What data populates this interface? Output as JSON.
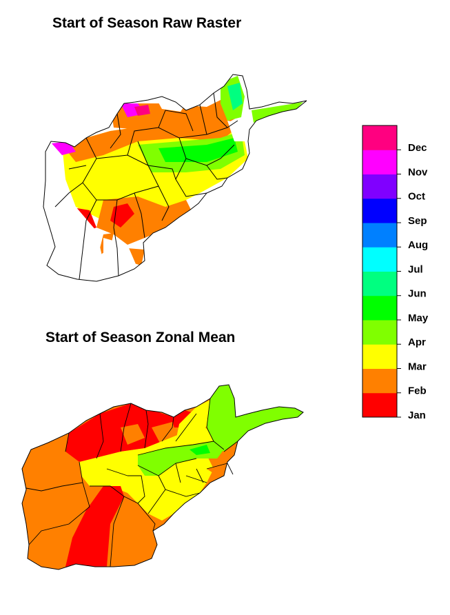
{
  "maps": {
    "raw_title": "Start of Season Raw Raster",
    "zonal_title": "Start of Season Zonal Mean"
  },
  "legend": {
    "items": [
      {
        "label": "Jan",
        "color": "#ff0000"
      },
      {
        "label": "Feb",
        "color": "#ff8000"
      },
      {
        "label": "Mar",
        "color": "#ffff00"
      },
      {
        "label": "Apr",
        "color": "#80ff00"
      },
      {
        "label": "May",
        "color": "#00ff00"
      },
      {
        "label": "Jun",
        "color": "#00ff80"
      },
      {
        "label": "Jul",
        "color": "#00ffff"
      },
      {
        "label": "Aug",
        "color": "#0080ff"
      },
      {
        "label": "Sep",
        "color": "#0000ff"
      },
      {
        "label": "Oct",
        "color": "#8000ff"
      },
      {
        "label": "Nov",
        "color": "#ff00ff"
      },
      {
        "label": "Dec",
        "color": "#ff0080"
      }
    ]
  }
}
